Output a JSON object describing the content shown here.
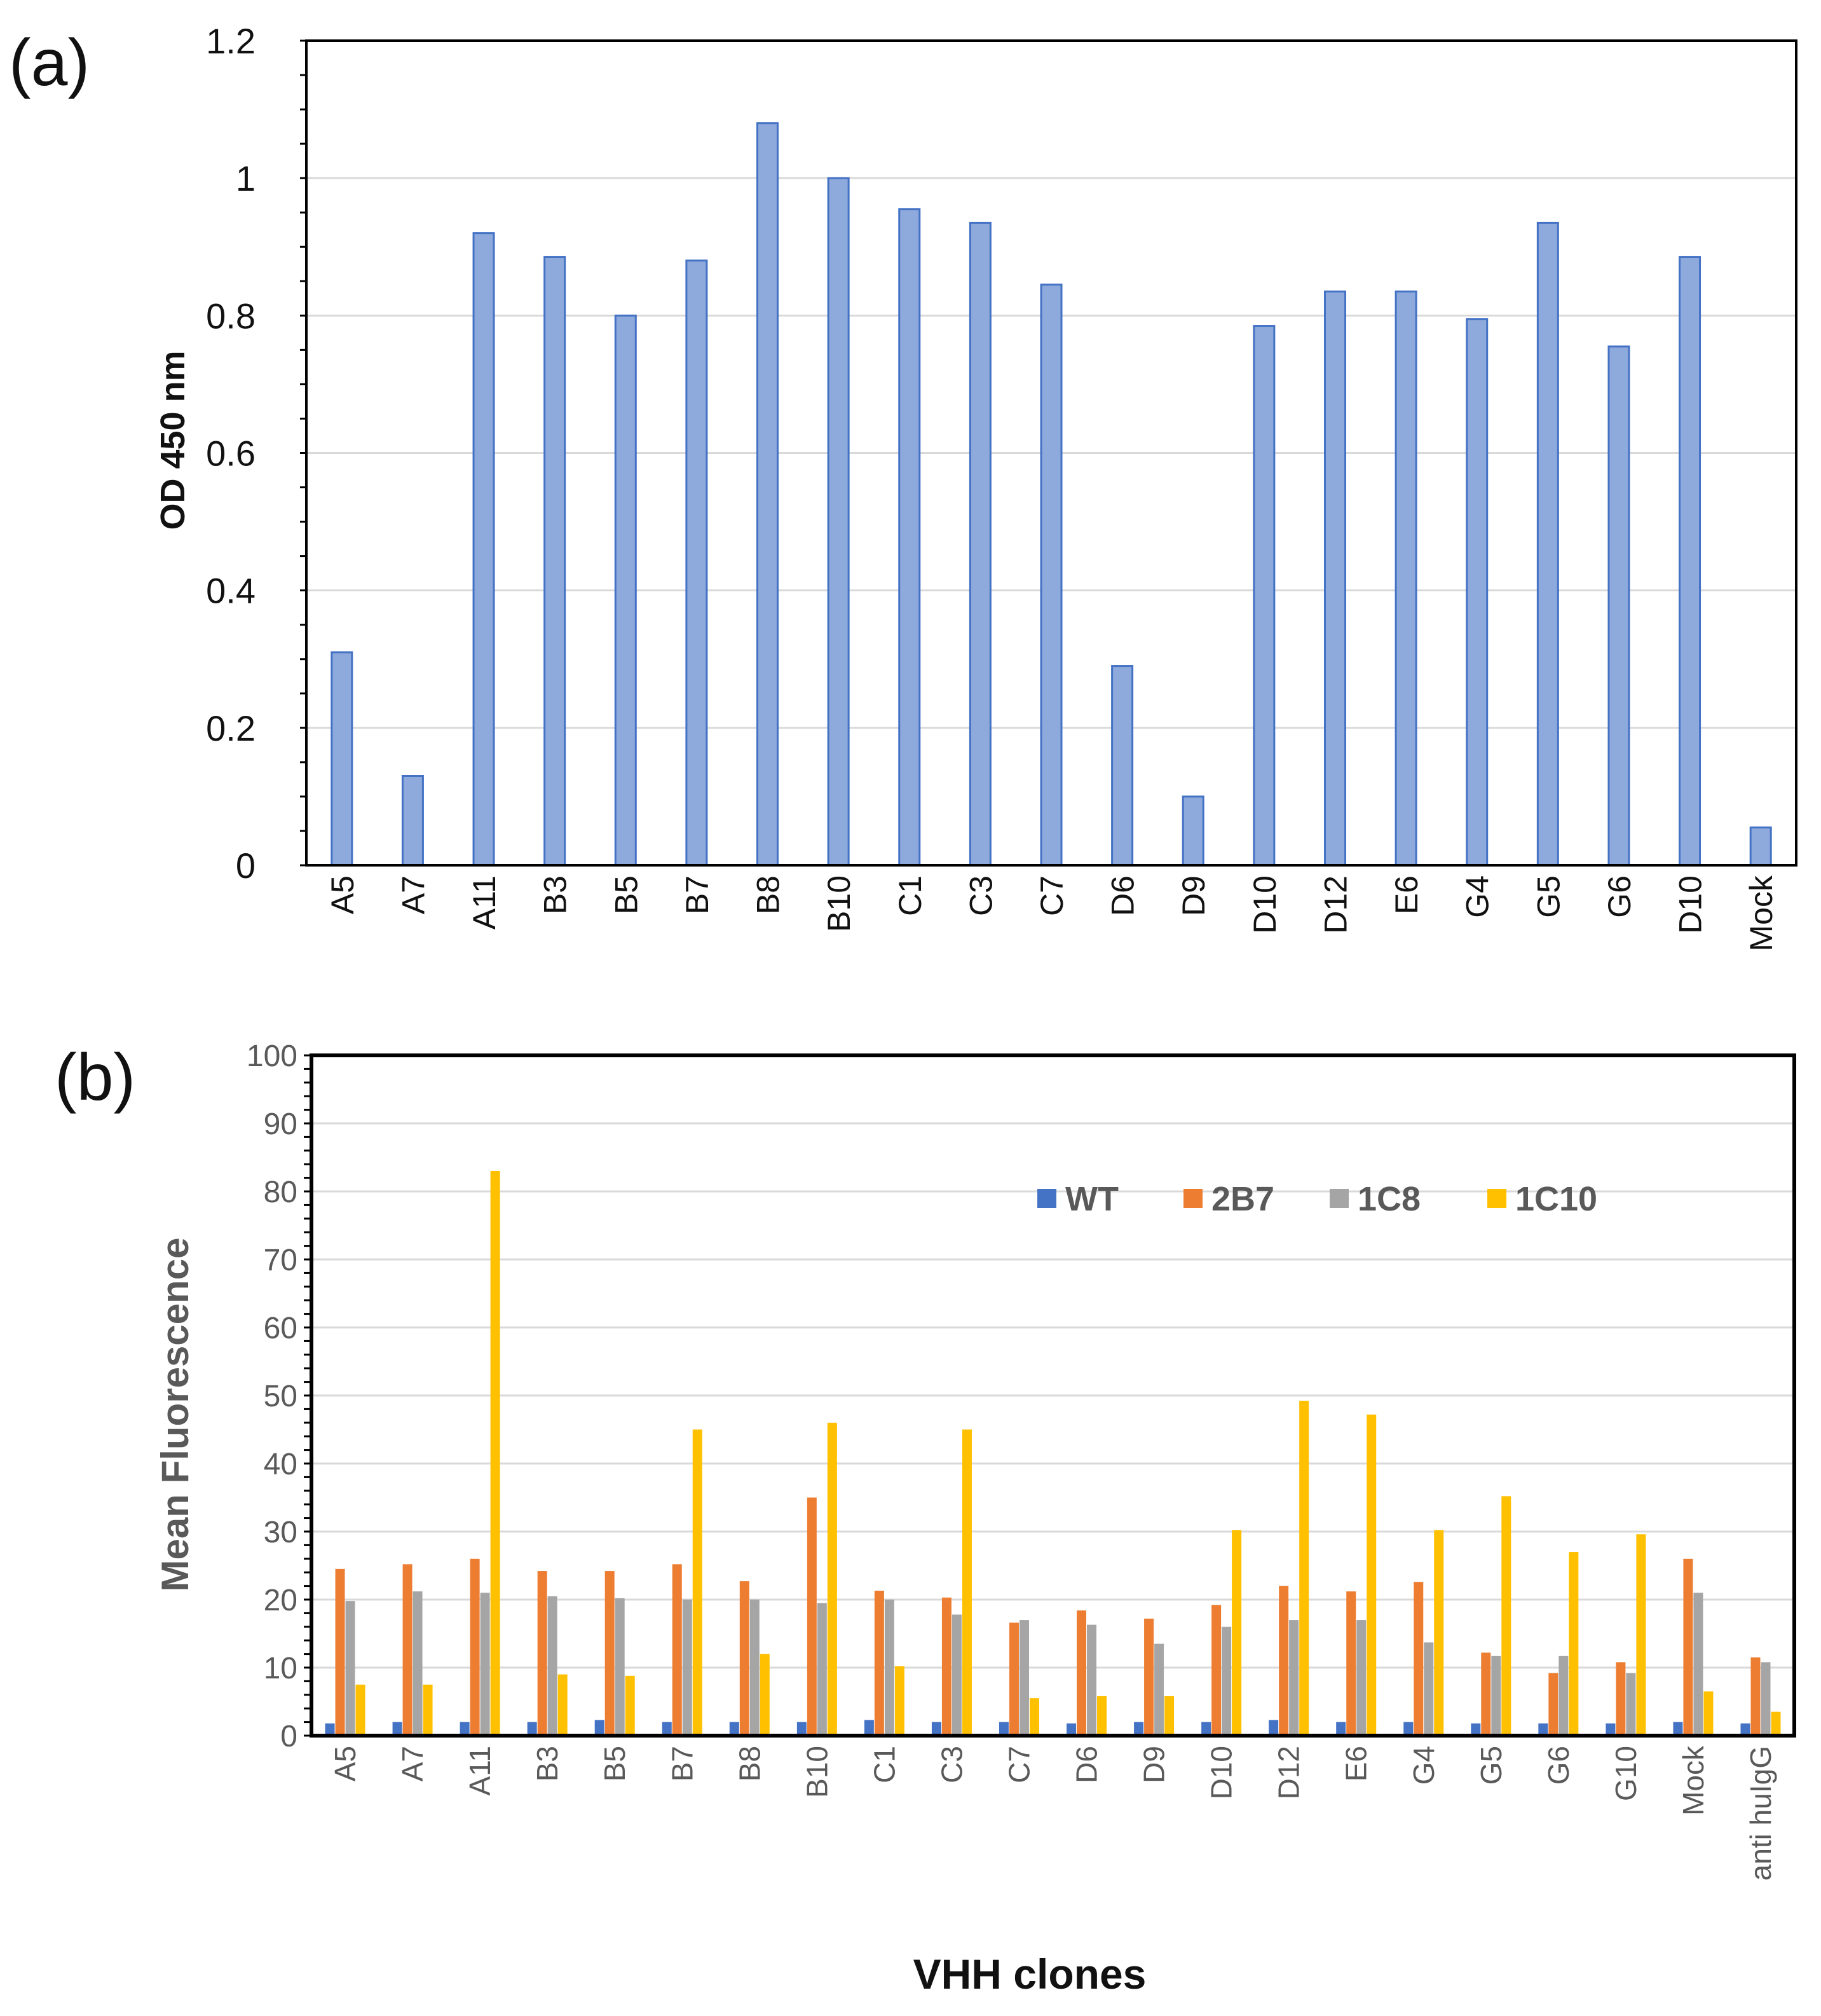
{
  "chart_data": [
    {
      "panel": "(a)",
      "type": "bar",
      "title": "",
      "xlabel": "",
      "ylabel": "OD 450 nm",
      "ylim": [
        0,
        1.2
      ],
      "yticks": [
        "0",
        "0.2",
        "0.4",
        "0.6",
        "0.8",
        "1",
        "1.2"
      ],
      "ytick_values": [
        0,
        0.2,
        0.4,
        0.6,
        0.8,
        1,
        1.2
      ],
      "categories": [
        "A5",
        "A7",
        "A11",
        "B3",
        "B5",
        "B7",
        "B8",
        "B10",
        "C1",
        "C3",
        "C7",
        "D6",
        "D9",
        "D10",
        "D12",
        "E6",
        "G4",
        "G5",
        "G6",
        "D10",
        "Mock"
      ],
      "values": [
        0.31,
        0.13,
        0.92,
        0.885,
        0.8,
        0.88,
        1.08,
        1.0,
        0.955,
        0.935,
        0.845,
        0.29,
        0.1,
        0.785,
        0.835,
        0.835,
        0.795,
        0.935,
        0.755,
        0.885,
        0.055
      ],
      "color": "#8EA9DB",
      "edge_color": "#4472C4",
      "grid": true
    },
    {
      "panel": "(b)",
      "type": "bar",
      "title": "",
      "xlabel": "VHH clones",
      "ylabel": "Mean Fluorescence",
      "ylim": [
        0,
        100
      ],
      "yticks": [
        "0",
        "10",
        "20",
        "30",
        "40",
        "50",
        "60",
        "70",
        "80",
        "90",
        "100"
      ],
      "ytick_values": [
        0,
        10,
        20,
        30,
        40,
        50,
        60,
        70,
        80,
        90,
        100
      ],
      "legend_position": "top-right",
      "grid": true,
      "categories": [
        "A5",
        "A7",
        "A11",
        "B3",
        "B5",
        "B7",
        "B8",
        "B10",
        "C1",
        "C3",
        "C7",
        "D6",
        "D9",
        "D10",
        "D12",
        "E6",
        "G4",
        "G5",
        "G6",
        "G10",
        "Mock",
        "anti huIgG"
      ],
      "series": [
        {
          "name": "WT",
          "color": "#4472C4",
          "values": [
            1.8,
            2.0,
            2.0,
            2.0,
            2.3,
            2.0,
            2.0,
            2.0,
            2.3,
            2.0,
            2.0,
            1.8,
            2.0,
            2.0,
            2.3,
            2.0,
            2.0,
            1.8,
            1.8,
            1.8,
            2.0,
            1.8
          ]
        },
        {
          "name": "2B7",
          "color": "#ED7D31",
          "values": [
            24.5,
            25.2,
            26.0,
            24.2,
            24.2,
            25.2,
            22.7,
            35.0,
            21.3,
            20.3,
            16.6,
            18.4,
            17.2,
            19.2,
            22.0,
            21.2,
            22.6,
            12.2,
            9.2,
            10.8,
            26.0,
            11.5
          ]
        },
        {
          "name": "1C8",
          "color": "#A5A5A5",
          "values": [
            19.8,
            21.2,
            21.0,
            20.5,
            20.2,
            20.0,
            20.0,
            19.5,
            20.0,
            17.8,
            17.0,
            16.3,
            13.5,
            16.0,
            17.0,
            17.0,
            13.7,
            11.7,
            11.7,
            9.2,
            21.0,
            10.8
          ]
        },
        {
          "name": "1C10",
          "color": "#FFC000",
          "values": [
            7.5,
            7.5,
            83.0,
            9.0,
            8.8,
            45.0,
            12.0,
            46.0,
            10.2,
            45.0,
            5.5,
            5.8,
            5.8,
            30.2,
            49.2,
            47.2,
            30.2,
            35.2,
            27.0,
            29.6,
            6.5,
            3.5
          ]
        }
      ]
    }
  ]
}
